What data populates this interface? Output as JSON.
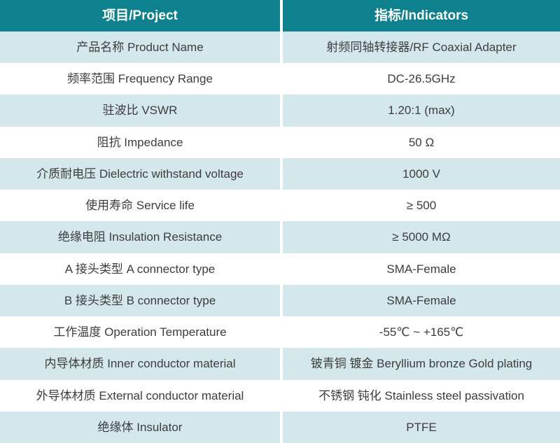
{
  "colors": {
    "header_bg": "#0e818e",
    "row_alt_bg": "#d4e7ea",
    "header_text": "#ffffff",
    "body_text": "#3d3d3d",
    "divider": "#ffffff"
  },
  "table": {
    "headers": {
      "project": "项目/Project",
      "indicators": "指标/Indicators"
    },
    "rows": [
      {
        "label": "产品名称 Product Name",
        "value": "射频同轴转接器/RF Coaxial Adapter"
      },
      {
        "label": "频率范围 Frequency Range",
        "value": "DC-26.5GHz"
      },
      {
        "label": "驻波比 VSWR",
        "value": "1.20:1 (max)"
      },
      {
        "label": "阻抗 Impedance",
        "value": "50 Ω"
      },
      {
        "label": "介质耐电压 Dielectric withstand voltage",
        "value": "1000 V"
      },
      {
        "label": "使用寿命 Service life",
        "value": "≥ 500"
      },
      {
        "label": "绝缘电阻 Insulation Resistance",
        "value": "≥ 5000 MΩ"
      },
      {
        "label": "A 接头类型 A connector type",
        "value": "SMA-Female"
      },
      {
        "label": "B 接头类型 B connector type",
        "value": "SMA-Female"
      },
      {
        "label": "工作温度 Operation Temperature",
        "value": "-55℃ ~ +165℃"
      },
      {
        "label": "内导体材质 Inner conductor material",
        "value": "铍青铜 镀金 Beryllium bronze Gold plating"
      },
      {
        "label": "外导体材质 External conductor material",
        "value": "不锈钢 钝化 Stainless steel passivation"
      },
      {
        "label": "绝缘体 Insulator",
        "value": "PTFE"
      }
    ]
  }
}
